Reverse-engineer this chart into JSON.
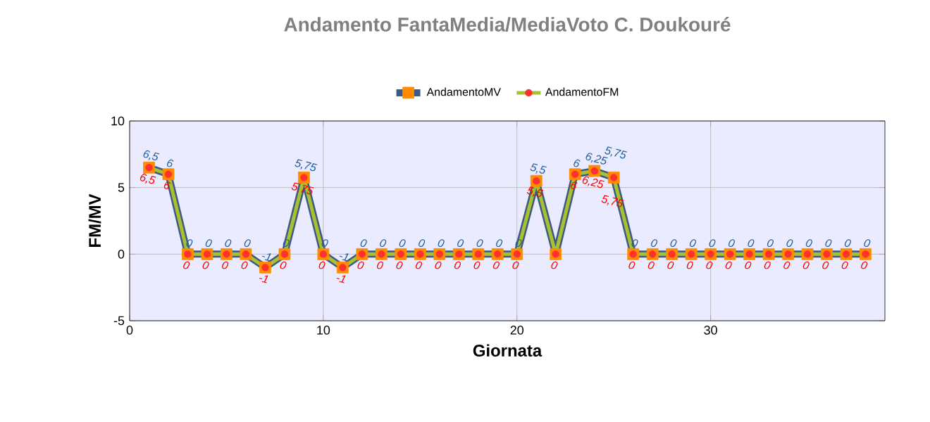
{
  "chart_data": {
    "type": "line",
    "title": "Andamento FantaMedia/MediaVoto C. Doukouré",
    "xlabel": "Giornata",
    "ylabel": "FM/MV",
    "x": [
      1,
      2,
      3,
      4,
      5,
      6,
      7,
      8,
      9,
      10,
      11,
      12,
      13,
      14,
      15,
      16,
      17,
      18,
      19,
      20,
      21,
      22,
      23,
      24,
      25,
      26,
      27,
      28,
      29,
      30,
      31,
      32,
      33,
      34,
      35,
      36,
      37,
      38
    ],
    "series": [
      {
        "name": "AndamentoMV",
        "color": "#3d5a80",
        "marker": "square",
        "values": [
          6.5,
          6,
          0,
          0,
          0,
          0,
          -1,
          0,
          5.75,
          0,
          -1,
          0,
          0,
          0,
          0,
          0,
          0,
          0,
          0,
          0,
          5.5,
          0,
          6,
          6.25,
          5.75,
          0,
          0,
          0,
          0,
          0,
          0,
          0,
          0,
          0,
          0,
          0,
          0,
          0
        ],
        "value_labels": [
          "6,5",
          "6",
          "0",
          "0",
          "0",
          "0",
          "-1",
          "0",
          "5,75",
          "0",
          "-1",
          "0",
          "0",
          "0",
          "0",
          "0",
          "0",
          "0",
          "0",
          "0",
          "5,5",
          null,
          "6",
          "6,25",
          "5,75",
          "0",
          "0",
          "0",
          "0",
          "0",
          "0",
          "0",
          "0",
          "0",
          "0",
          "0",
          "0",
          "0"
        ]
      },
      {
        "name": "AndamentoFM",
        "color": "#a8c032",
        "marker": "circle",
        "values": [
          6.5,
          6,
          0,
          0,
          0,
          0,
          -1,
          0,
          5.75,
          0,
          -1,
          0,
          0,
          0,
          0,
          0,
          0,
          0,
          0,
          0,
          5.5,
          0,
          6,
          6.25,
          5.75,
          0,
          0,
          0,
          0,
          0,
          0,
          0,
          0,
          0,
          0,
          0,
          0,
          0
        ],
        "value_labels": [
          "6,5",
          "6",
          "0",
          "0",
          "0",
          "0",
          "-1",
          "0",
          "5,75",
          "0",
          "-1",
          "0",
          "0",
          "0",
          "0",
          "0",
          "0",
          "0",
          "0",
          "0",
          "5,5",
          "0",
          "6",
          "6,25",
          "5,75",
          "0",
          "0",
          "0",
          "0",
          "0",
          "0",
          "0",
          "0",
          "0",
          "0",
          "0",
          "0",
          "0"
        ]
      }
    ],
    "xlim": [
      0,
      39
    ],
    "ylim": [
      -5,
      10
    ],
    "xticks": [
      0,
      10,
      20,
      30
    ],
    "yticks": [
      -5,
      0,
      5,
      10
    ],
    "grid": true,
    "legend": "top",
    "line_style": "solid"
  }
}
